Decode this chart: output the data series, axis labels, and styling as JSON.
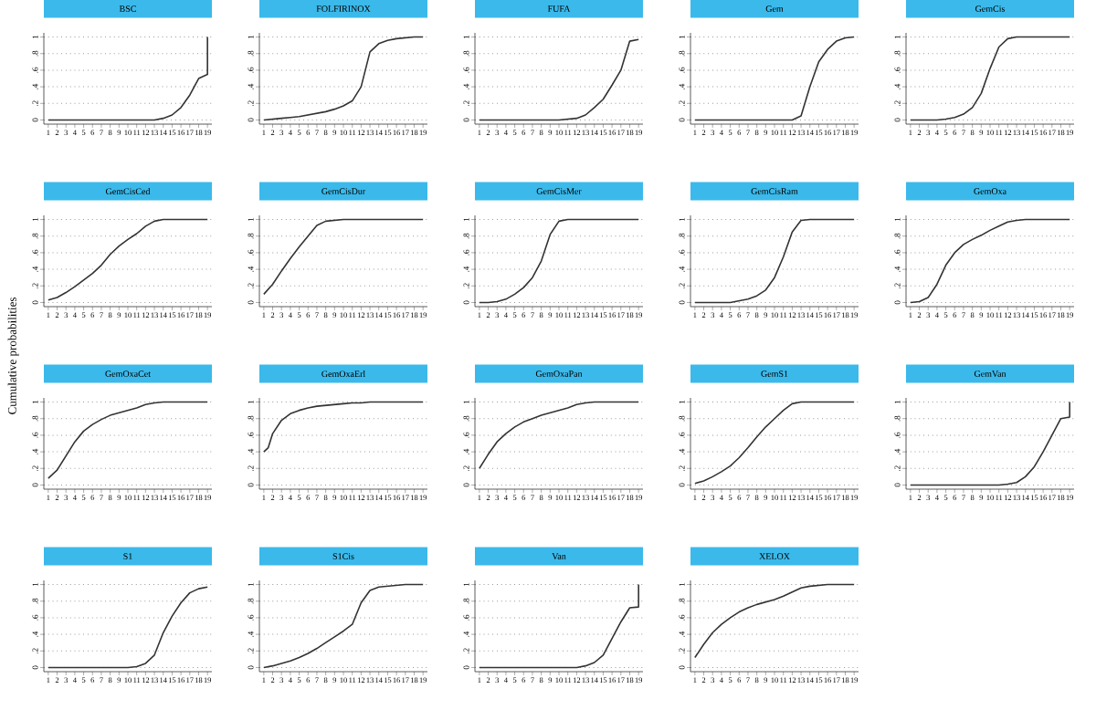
{
  "chart_data": [
    {
      "type": "line",
      "title": "BSC",
      "x": [
        1,
        2,
        3,
        4,
        5,
        6,
        7,
        8,
        9,
        10,
        11,
        12,
        13,
        14,
        15,
        16,
        17,
        18,
        19,
        19
      ],
      "series": [
        {
          "color": "#333333",
          "values": [
            0,
            0,
            0,
            0,
            0,
            0,
            0,
            0,
            0,
            0,
            0,
            0,
            0,
            0.02,
            0.06,
            0.15,
            0.3,
            0.5,
            0.55,
            1
          ]
        }
      ],
      "xlim": [
        0.5,
        19.5
      ],
      "ylim": [
        -0.05,
        1.05
      ],
      "xticks": [
        1,
        2,
        3,
        4,
        5,
        6,
        7,
        8,
        9,
        10,
        11,
        12,
        13,
        14,
        15,
        16,
        17,
        18,
        19
      ],
      "yticks": [
        0,
        {
          "value": 0.2,
          "label": ".2"
        },
        {
          "value": 0.4,
          "label": ".4"
        },
        {
          "value": 0.6,
          "label": ".6"
        },
        {
          "value": 0.8,
          "label": ".8"
        },
        1
      ],
      "grid": "y"
    },
    {
      "type": "line",
      "title": "FOLFIRINOX",
      "x": [
        1,
        2,
        3,
        4,
        5,
        6,
        7,
        8,
        9,
        10,
        11,
        12,
        13,
        14,
        15,
        16,
        17,
        18,
        19
      ],
      "series": [
        {
          "color": "#333333",
          "values": [
            0,
            0.01,
            0.02,
            0.03,
            0.04,
            0.06,
            0.08,
            0.1,
            0.13,
            0.17,
            0.23,
            0.4,
            0.82,
            0.92,
            0.96,
            0.98,
            0.99,
            1,
            1
          ]
        }
      ],
      "xlim": [
        0.5,
        19.5
      ],
      "ylim": [
        -0.05,
        1.05
      ],
      "xticks": [
        1,
        2,
        3,
        4,
        5,
        6,
        7,
        8,
        9,
        10,
        11,
        12,
        13,
        14,
        15,
        16,
        17,
        18,
        19
      ],
      "yticks": [
        0,
        {
          "value": 0.2,
          "label": ".2"
        },
        {
          "value": 0.4,
          "label": ".4"
        },
        {
          "value": 0.6,
          "label": ".6"
        },
        {
          "value": 0.8,
          "label": ".8"
        },
        1
      ],
      "grid": "y"
    },
    {
      "type": "line",
      "title": "FUFA",
      "x": [
        1,
        2,
        3,
        4,
        5,
        6,
        7,
        8,
        9,
        10,
        11,
        12,
        13,
        14,
        15,
        16,
        17,
        18,
        19
      ],
      "series": [
        {
          "color": "#333333",
          "values": [
            0,
            0,
            0,
            0,
            0,
            0,
            0,
            0,
            0,
            0,
            0.01,
            0.02,
            0.06,
            0.15,
            0.25,
            0.42,
            0.6,
            0.95,
            0.97
          ]
        }
      ],
      "xlim": [
        0.5,
        19.5
      ],
      "ylim": [
        -0.05,
        1.05
      ],
      "xticks": [
        1,
        2,
        3,
        4,
        5,
        6,
        7,
        8,
        9,
        10,
        11,
        12,
        13,
        14,
        15,
        16,
        17,
        18,
        19
      ],
      "yticks": [
        0,
        {
          "value": 0.2,
          "label": ".2"
        },
        {
          "value": 0.4,
          "label": ".4"
        },
        {
          "value": 0.6,
          "label": ".6"
        },
        {
          "value": 0.8,
          "label": ".8"
        },
        1
      ],
      "grid": "y"
    },
    {
      "type": "line",
      "title": "Gem",
      "x": [
        1,
        2,
        3,
        4,
        5,
        6,
        7,
        8,
        9,
        10,
        11,
        12,
        13,
        14,
        15,
        16,
        17,
        18,
        19
      ],
      "series": [
        {
          "color": "#333333",
          "values": [
            0,
            0,
            0,
            0,
            0,
            0,
            0,
            0,
            0,
            0,
            0,
            0,
            0.05,
            0.4,
            0.7,
            0.85,
            0.95,
            0.99,
            1
          ]
        }
      ],
      "xlim": [
        0.5,
        19.5
      ],
      "ylim": [
        -0.05,
        1.05
      ],
      "xticks": [
        1,
        2,
        3,
        4,
        5,
        6,
        7,
        8,
        9,
        10,
        11,
        12,
        13,
        14,
        15,
        16,
        17,
        18,
        19
      ],
      "yticks": [
        0,
        {
          "value": 0.2,
          "label": ".2"
        },
        {
          "value": 0.4,
          "label": ".4"
        },
        {
          "value": 0.6,
          "label": ".6"
        },
        {
          "value": 0.8,
          "label": ".8"
        },
        1
      ],
      "grid": "y"
    },
    {
      "type": "line",
      "title": "GemCis",
      "x": [
        1,
        2,
        3,
        4,
        5,
        6,
        7,
        8,
        9,
        10,
        11,
        12,
        13,
        14,
        15,
        16,
        17,
        18,
        19
      ],
      "series": [
        {
          "color": "#333333",
          "values": [
            0,
            0,
            0,
            0,
            0.01,
            0.03,
            0.07,
            0.15,
            0.32,
            0.62,
            0.88,
            0.98,
            1,
            1,
            1,
            1,
            1,
            1,
            1
          ]
        }
      ],
      "xlim": [
        0.5,
        19.5
      ],
      "ylim": [
        -0.05,
        1.05
      ],
      "xticks": [
        1,
        2,
        3,
        4,
        5,
        6,
        7,
        8,
        9,
        10,
        11,
        12,
        13,
        14,
        15,
        16,
        17,
        18,
        19
      ],
      "yticks": [
        0,
        {
          "value": 0.2,
          "label": ".2"
        },
        {
          "value": 0.4,
          "label": ".4"
        },
        {
          "value": 0.6,
          "label": ".6"
        },
        {
          "value": 0.8,
          "label": ".8"
        },
        1
      ],
      "grid": "y"
    },
    {
      "type": "line",
      "title": "GemCisCed",
      "x": [
        1,
        2,
        3,
        4,
        5,
        6,
        7,
        8,
        9,
        10,
        11,
        12,
        13,
        14,
        15,
        16,
        17,
        18,
        19
      ],
      "series": [
        {
          "color": "#333333",
          "values": [
            0.03,
            0.06,
            0.12,
            0.19,
            0.27,
            0.35,
            0.45,
            0.58,
            0.68,
            0.76,
            0.83,
            0.92,
            0.98,
            1,
            1,
            1,
            1,
            1,
            1
          ]
        }
      ],
      "xlim": [
        0.5,
        19.5
      ],
      "ylim": [
        -0.05,
        1.05
      ],
      "xticks": [
        1,
        2,
        3,
        4,
        5,
        6,
        7,
        8,
        9,
        10,
        11,
        12,
        13,
        14,
        15,
        16,
        17,
        18,
        19
      ],
      "yticks": [
        0,
        {
          "value": 0.2,
          "label": ".2"
        },
        {
          "value": 0.4,
          "label": ".4"
        },
        {
          "value": 0.6,
          "label": ".6"
        },
        {
          "value": 0.8,
          "label": ".8"
        },
        1
      ],
      "grid": "y"
    },
    {
      "type": "line",
      "title": "GemCisDur",
      "x": [
        1,
        2,
        3,
        4,
        5,
        6,
        7,
        8,
        9,
        10,
        11,
        12,
        13,
        14,
        15,
        16,
        17,
        18,
        19
      ],
      "series": [
        {
          "color": "#333333",
          "values": [
            0.1,
            0.22,
            0.38,
            0.53,
            0.67,
            0.8,
            0.93,
            0.98,
            0.99,
            1,
            1,
            1,
            1,
            1,
            1,
            1,
            1,
            1,
            1
          ]
        }
      ],
      "xlim": [
        0.5,
        19.5
      ],
      "ylim": [
        -0.05,
        1.05
      ],
      "xticks": [
        1,
        2,
        3,
        4,
        5,
        6,
        7,
        8,
        9,
        10,
        11,
        12,
        13,
        14,
        15,
        16,
        17,
        18,
        19
      ],
      "yticks": [
        0,
        {
          "value": 0.2,
          "label": ".2"
        },
        {
          "value": 0.4,
          "label": ".4"
        },
        {
          "value": 0.6,
          "label": ".6"
        },
        {
          "value": 0.8,
          "label": ".8"
        },
        1
      ],
      "grid": "y"
    },
    {
      "type": "line",
      "title": "GemCisMer",
      "x": [
        1,
        2,
        3,
        4,
        5,
        6,
        7,
        8,
        9,
        10,
        11,
        12,
        13,
        14,
        15,
        16,
        17,
        18,
        19
      ],
      "series": [
        {
          "color": "#333333",
          "values": [
            0,
            0,
            0.01,
            0.04,
            0.1,
            0.18,
            0.3,
            0.5,
            0.82,
            0.98,
            1,
            1,
            1,
            1,
            1,
            1,
            1,
            1,
            1
          ]
        }
      ],
      "xlim": [
        0.5,
        19.5
      ],
      "ylim": [
        -0.05,
        1.05
      ],
      "xticks": [
        1,
        2,
        3,
        4,
        5,
        6,
        7,
        8,
        9,
        10,
        11,
        12,
        13,
        14,
        15,
        16,
        17,
        18,
        19
      ],
      "yticks": [
        0,
        {
          "value": 0.2,
          "label": ".2"
        },
        {
          "value": 0.4,
          "label": ".4"
        },
        {
          "value": 0.6,
          "label": ".6"
        },
        {
          "value": 0.8,
          "label": ".8"
        },
        1
      ],
      "grid": "y"
    },
    {
      "type": "line",
      "title": "GemCisRam",
      "x": [
        1,
        2,
        3,
        4,
        5,
        6,
        7,
        8,
        9,
        10,
        11,
        12,
        13,
        14,
        15,
        16,
        17,
        18,
        19
      ],
      "series": [
        {
          "color": "#333333",
          "values": [
            0,
            0,
            0,
            0,
            0,
            0.02,
            0.04,
            0.08,
            0.15,
            0.3,
            0.55,
            0.85,
            0.99,
            1,
            1,
            1,
            1,
            1,
            1
          ]
        }
      ],
      "xlim": [
        0.5,
        19.5
      ],
      "ylim": [
        -0.05,
        1.05
      ],
      "xticks": [
        1,
        2,
        3,
        4,
        5,
        6,
        7,
        8,
        9,
        10,
        11,
        12,
        13,
        14,
        15,
        16,
        17,
        18,
        19
      ],
      "yticks": [
        0,
        {
          "value": 0.2,
          "label": ".2"
        },
        {
          "value": 0.4,
          "label": ".4"
        },
        {
          "value": 0.6,
          "label": ".6"
        },
        {
          "value": 0.8,
          "label": ".8"
        },
        1
      ],
      "grid": "y"
    },
    {
      "type": "line",
      "title": "GemOxa",
      "x": [
        1,
        2,
        3,
        4,
        5,
        6,
        7,
        8,
        9,
        10,
        11,
        12,
        13,
        14,
        15,
        16,
        17,
        18,
        19
      ],
      "series": [
        {
          "color": "#333333",
          "values": [
            0,
            0.01,
            0.06,
            0.22,
            0.45,
            0.6,
            0.7,
            0.76,
            0.81,
            0.87,
            0.92,
            0.97,
            0.99,
            1,
            1,
            1,
            1,
            1,
            1
          ]
        }
      ],
      "xlim": [
        0.5,
        19.5
      ],
      "ylim": [
        -0.05,
        1.05
      ],
      "xticks": [
        1,
        2,
        3,
        4,
        5,
        6,
        7,
        8,
        9,
        10,
        11,
        12,
        13,
        14,
        15,
        16,
        17,
        18,
        19
      ],
      "yticks": [
        0,
        {
          "value": 0.2,
          "label": ".2"
        },
        {
          "value": 0.4,
          "label": ".4"
        },
        {
          "value": 0.6,
          "label": ".6"
        },
        {
          "value": 0.8,
          "label": ".8"
        },
        1
      ],
      "grid": "y"
    },
    {
      "type": "line",
      "title": "GemOxaCet",
      "ylabel": "Cumulative probabilities",
      "x": [
        1,
        2,
        3,
        4,
        5,
        6,
        7,
        8,
        9,
        10,
        11,
        12,
        13,
        14,
        15,
        16,
        17,
        18,
        19
      ],
      "series": [
        {
          "color": "#333333",
          "values": [
            0.08,
            0.18,
            0.35,
            0.52,
            0.65,
            0.73,
            0.79,
            0.84,
            0.87,
            0.9,
            0.93,
            0.97,
            0.99,
            1,
            1,
            1,
            1,
            1,
            1
          ]
        }
      ],
      "xlim": [
        0.5,
        19.5
      ],
      "ylim": [
        -0.05,
        1.05
      ],
      "xticks": [
        1,
        2,
        3,
        4,
        5,
        6,
        7,
        8,
        9,
        10,
        11,
        12,
        13,
        14,
        15,
        16,
        17,
        18,
        19
      ],
      "yticks": [
        0,
        {
          "value": 0.2,
          "label": ".2"
        },
        {
          "value": 0.4,
          "label": ".4"
        },
        {
          "value": 0.6,
          "label": ".6"
        },
        {
          "value": 0.8,
          "label": ".8"
        },
        1
      ],
      "grid": "y"
    },
    {
      "type": "line",
      "title": "GemOxaErl",
      "x": [
        1,
        1.5,
        2,
        3,
        4,
        5,
        6,
        7,
        8,
        9,
        10,
        11,
        12,
        13,
        14,
        15,
        16,
        17,
        18,
        19
      ],
      "series": [
        {
          "color": "#333333",
          "values": [
            0.4,
            0.45,
            0.62,
            0.78,
            0.86,
            0.9,
            0.93,
            0.95,
            0.96,
            0.97,
            0.98,
            0.99,
            0.99,
            1,
            1,
            1,
            1,
            1,
            1,
            1
          ]
        }
      ],
      "xlim": [
        0.5,
        19.5
      ],
      "ylim": [
        -0.05,
        1.05
      ],
      "xticks": [
        1,
        2,
        3,
        4,
        5,
        6,
        7,
        8,
        9,
        10,
        11,
        12,
        13,
        14,
        15,
        16,
        17,
        18,
        19
      ],
      "yticks": [
        0,
        {
          "value": 0.2,
          "label": ".2"
        },
        {
          "value": 0.4,
          "label": ".4"
        },
        {
          "value": 0.6,
          "label": ".6"
        },
        {
          "value": 0.8,
          "label": ".8"
        },
        1
      ],
      "grid": "y"
    },
    {
      "type": "line",
      "title": "GemOxaPan",
      "x": [
        1,
        2,
        3,
        4,
        5,
        6,
        7,
        8,
        9,
        10,
        11,
        12,
        13,
        14,
        15,
        16,
        17,
        18,
        19
      ],
      "series": [
        {
          "color": "#333333",
          "values": [
            0.2,
            0.37,
            0.52,
            0.62,
            0.7,
            0.76,
            0.8,
            0.84,
            0.87,
            0.9,
            0.93,
            0.97,
            0.99,
            1,
            1,
            1,
            1,
            1,
            1
          ]
        }
      ],
      "xlim": [
        0.5,
        19.5
      ],
      "ylim": [
        -0.05,
        1.05
      ],
      "xticks": [
        1,
        2,
        3,
        4,
        5,
        6,
        7,
        8,
        9,
        10,
        11,
        12,
        13,
        14,
        15,
        16,
        17,
        18,
        19
      ],
      "yticks": [
        0,
        {
          "value": 0.2,
          "label": ".2"
        },
        {
          "value": 0.4,
          "label": ".4"
        },
        {
          "value": 0.6,
          "label": ".6"
        },
        {
          "value": 0.8,
          "label": ".8"
        },
        1
      ],
      "grid": "y"
    },
    {
      "type": "line",
      "title": "GemS1",
      "x": [
        1,
        2,
        3,
        4,
        5,
        6,
        7,
        8,
        9,
        10,
        11,
        12,
        13,
        14,
        15,
        16,
        17,
        18,
        19
      ],
      "series": [
        {
          "color": "#333333",
          "values": [
            0.02,
            0.05,
            0.1,
            0.16,
            0.23,
            0.33,
            0.45,
            0.58,
            0.7,
            0.8,
            0.9,
            0.98,
            1,
            1,
            1,
            1,
            1,
            1,
            1
          ]
        }
      ],
      "xlim": [
        0.5,
        19.5
      ],
      "ylim": [
        -0.05,
        1.05
      ],
      "xticks": [
        1,
        2,
        3,
        4,
        5,
        6,
        7,
        8,
        9,
        10,
        11,
        12,
        13,
        14,
        15,
        16,
        17,
        18,
        19
      ],
      "yticks": [
        0,
        {
          "value": 0.2,
          "label": ".2"
        },
        {
          "value": 0.4,
          "label": ".4"
        },
        {
          "value": 0.6,
          "label": ".6"
        },
        {
          "value": 0.8,
          "label": ".8"
        },
        1
      ],
      "grid": "y"
    },
    {
      "type": "line",
      "title": "GemVan",
      "x": [
        1,
        2,
        3,
        4,
        5,
        6,
        7,
        8,
        9,
        10,
        11,
        12,
        13,
        14,
        15,
        16,
        17,
        18,
        19,
        19
      ],
      "series": [
        {
          "color": "#333333",
          "values": [
            0,
            0,
            0,
            0,
            0,
            0,
            0,
            0,
            0,
            0,
            0,
            0.01,
            0.03,
            0.1,
            0.22,
            0.4,
            0.6,
            0.8,
            0.82,
            1
          ]
        }
      ],
      "xlim": [
        0.5,
        19.5
      ],
      "ylim": [
        -0.05,
        1.05
      ],
      "xticks": [
        1,
        2,
        3,
        4,
        5,
        6,
        7,
        8,
        9,
        10,
        11,
        12,
        13,
        14,
        15,
        16,
        17,
        18,
        19
      ],
      "yticks": [
        0,
        {
          "value": 0.2,
          "label": ".2"
        },
        {
          "value": 0.4,
          "label": ".4"
        },
        {
          "value": 0.6,
          "label": ".6"
        },
        {
          "value": 0.8,
          "label": ".8"
        },
        1
      ],
      "grid": "y"
    },
    {
      "type": "line",
      "title": "S1",
      "x": [
        1,
        2,
        3,
        4,
        5,
        6,
        7,
        8,
        9,
        10,
        11,
        12,
        13,
        14,
        15,
        16,
        17,
        18,
        19
      ],
      "series": [
        {
          "color": "#333333",
          "values": [
            0,
            0,
            0,
            0,
            0,
            0,
            0,
            0,
            0,
            0,
            0.01,
            0.05,
            0.15,
            0.42,
            0.62,
            0.78,
            0.9,
            0.95,
            0.97
          ]
        }
      ],
      "xlim": [
        0.5,
        19.5
      ],
      "ylim": [
        -0.05,
        1.05
      ],
      "xticks": [
        1,
        2,
        3,
        4,
        5,
        6,
        7,
        8,
        9,
        10,
        11,
        12,
        13,
        14,
        15,
        16,
        17,
        18,
        19
      ],
      "yticks": [
        0,
        {
          "value": 0.2,
          "label": ".2"
        },
        {
          "value": 0.4,
          "label": ".4"
        },
        {
          "value": 0.6,
          "label": ".6"
        },
        {
          "value": 0.8,
          "label": ".8"
        },
        1
      ],
      "grid": "y"
    },
    {
      "type": "line",
      "title": "S1Cis",
      "x": [
        1,
        2,
        3,
        4,
        5,
        6,
        7,
        8,
        9,
        10,
        11,
        12,
        13,
        14,
        15,
        16,
        17,
        18,
        19
      ],
      "series": [
        {
          "color": "#333333",
          "values": [
            0,
            0.02,
            0.05,
            0.08,
            0.12,
            0.17,
            0.23,
            0.3,
            0.37,
            0.44,
            0.52,
            0.78,
            0.93,
            0.97,
            0.98,
            0.99,
            1,
            1,
            1
          ]
        }
      ],
      "xlim": [
        0.5,
        19.5
      ],
      "ylim": [
        -0.05,
        1.05
      ],
      "xticks": [
        1,
        2,
        3,
        4,
        5,
        6,
        7,
        8,
        9,
        10,
        11,
        12,
        13,
        14,
        15,
        16,
        17,
        18,
        19
      ],
      "yticks": [
        0,
        {
          "value": 0.2,
          "label": ".2"
        },
        {
          "value": 0.4,
          "label": ".4"
        },
        {
          "value": 0.6,
          "label": ".6"
        },
        {
          "value": 0.8,
          "label": ".8"
        },
        1
      ],
      "grid": "y"
    },
    {
      "type": "line",
      "title": "Van",
      "x": [
        1,
        2,
        3,
        4,
        5,
        6,
        7,
        8,
        9,
        10,
        11,
        12,
        13,
        14,
        15,
        16,
        17,
        18,
        19,
        19
      ],
      "series": [
        {
          "color": "#333333",
          "values": [
            0,
            0,
            0,
            0,
            0,
            0,
            0,
            0,
            0,
            0,
            0,
            0,
            0.02,
            0.06,
            0.15,
            0.35,
            0.55,
            0.72,
            0.73,
            1
          ]
        }
      ],
      "xlim": [
        0.5,
        19.5
      ],
      "ylim": [
        -0.05,
        1.05
      ],
      "xticks": [
        1,
        2,
        3,
        4,
        5,
        6,
        7,
        8,
        9,
        10,
        11,
        12,
        13,
        14,
        15,
        16,
        17,
        18,
        19
      ],
      "yticks": [
        0,
        {
          "value": 0.2,
          "label": ".2"
        },
        {
          "value": 0.4,
          "label": ".4"
        },
        {
          "value": 0.6,
          "label": ".6"
        },
        {
          "value": 0.8,
          "label": ".8"
        },
        1
      ],
      "grid": "y"
    },
    {
      "type": "line",
      "title": "XELOX",
      "x": [
        1,
        2,
        3,
        4,
        5,
        6,
        7,
        8,
        9,
        10,
        11,
        12,
        13,
        14,
        15,
        16,
        17,
        18,
        19
      ],
      "series": [
        {
          "color": "#333333",
          "values": [
            0.12,
            0.28,
            0.42,
            0.52,
            0.6,
            0.67,
            0.72,
            0.76,
            0.79,
            0.82,
            0.86,
            0.91,
            0.96,
            0.98,
            0.99,
            1,
            1,
            1,
            1
          ]
        }
      ],
      "xlim": [
        0.5,
        19.5
      ],
      "ylim": [
        -0.05,
        1.05
      ],
      "xticks": [
        1,
        2,
        3,
        4,
        5,
        6,
        7,
        8,
        9,
        10,
        11,
        12,
        13,
        14,
        15,
        16,
        17,
        18,
        19
      ],
      "yticks": [
        0,
        {
          "value": 0.2,
          "label": ".2"
        },
        {
          "value": 0.4,
          "label": ".4"
        },
        {
          "value": 0.6,
          "label": ".6"
        },
        {
          "value": 0.8,
          "label": ".8"
        },
        1
      ],
      "grid": "y"
    }
  ]
}
